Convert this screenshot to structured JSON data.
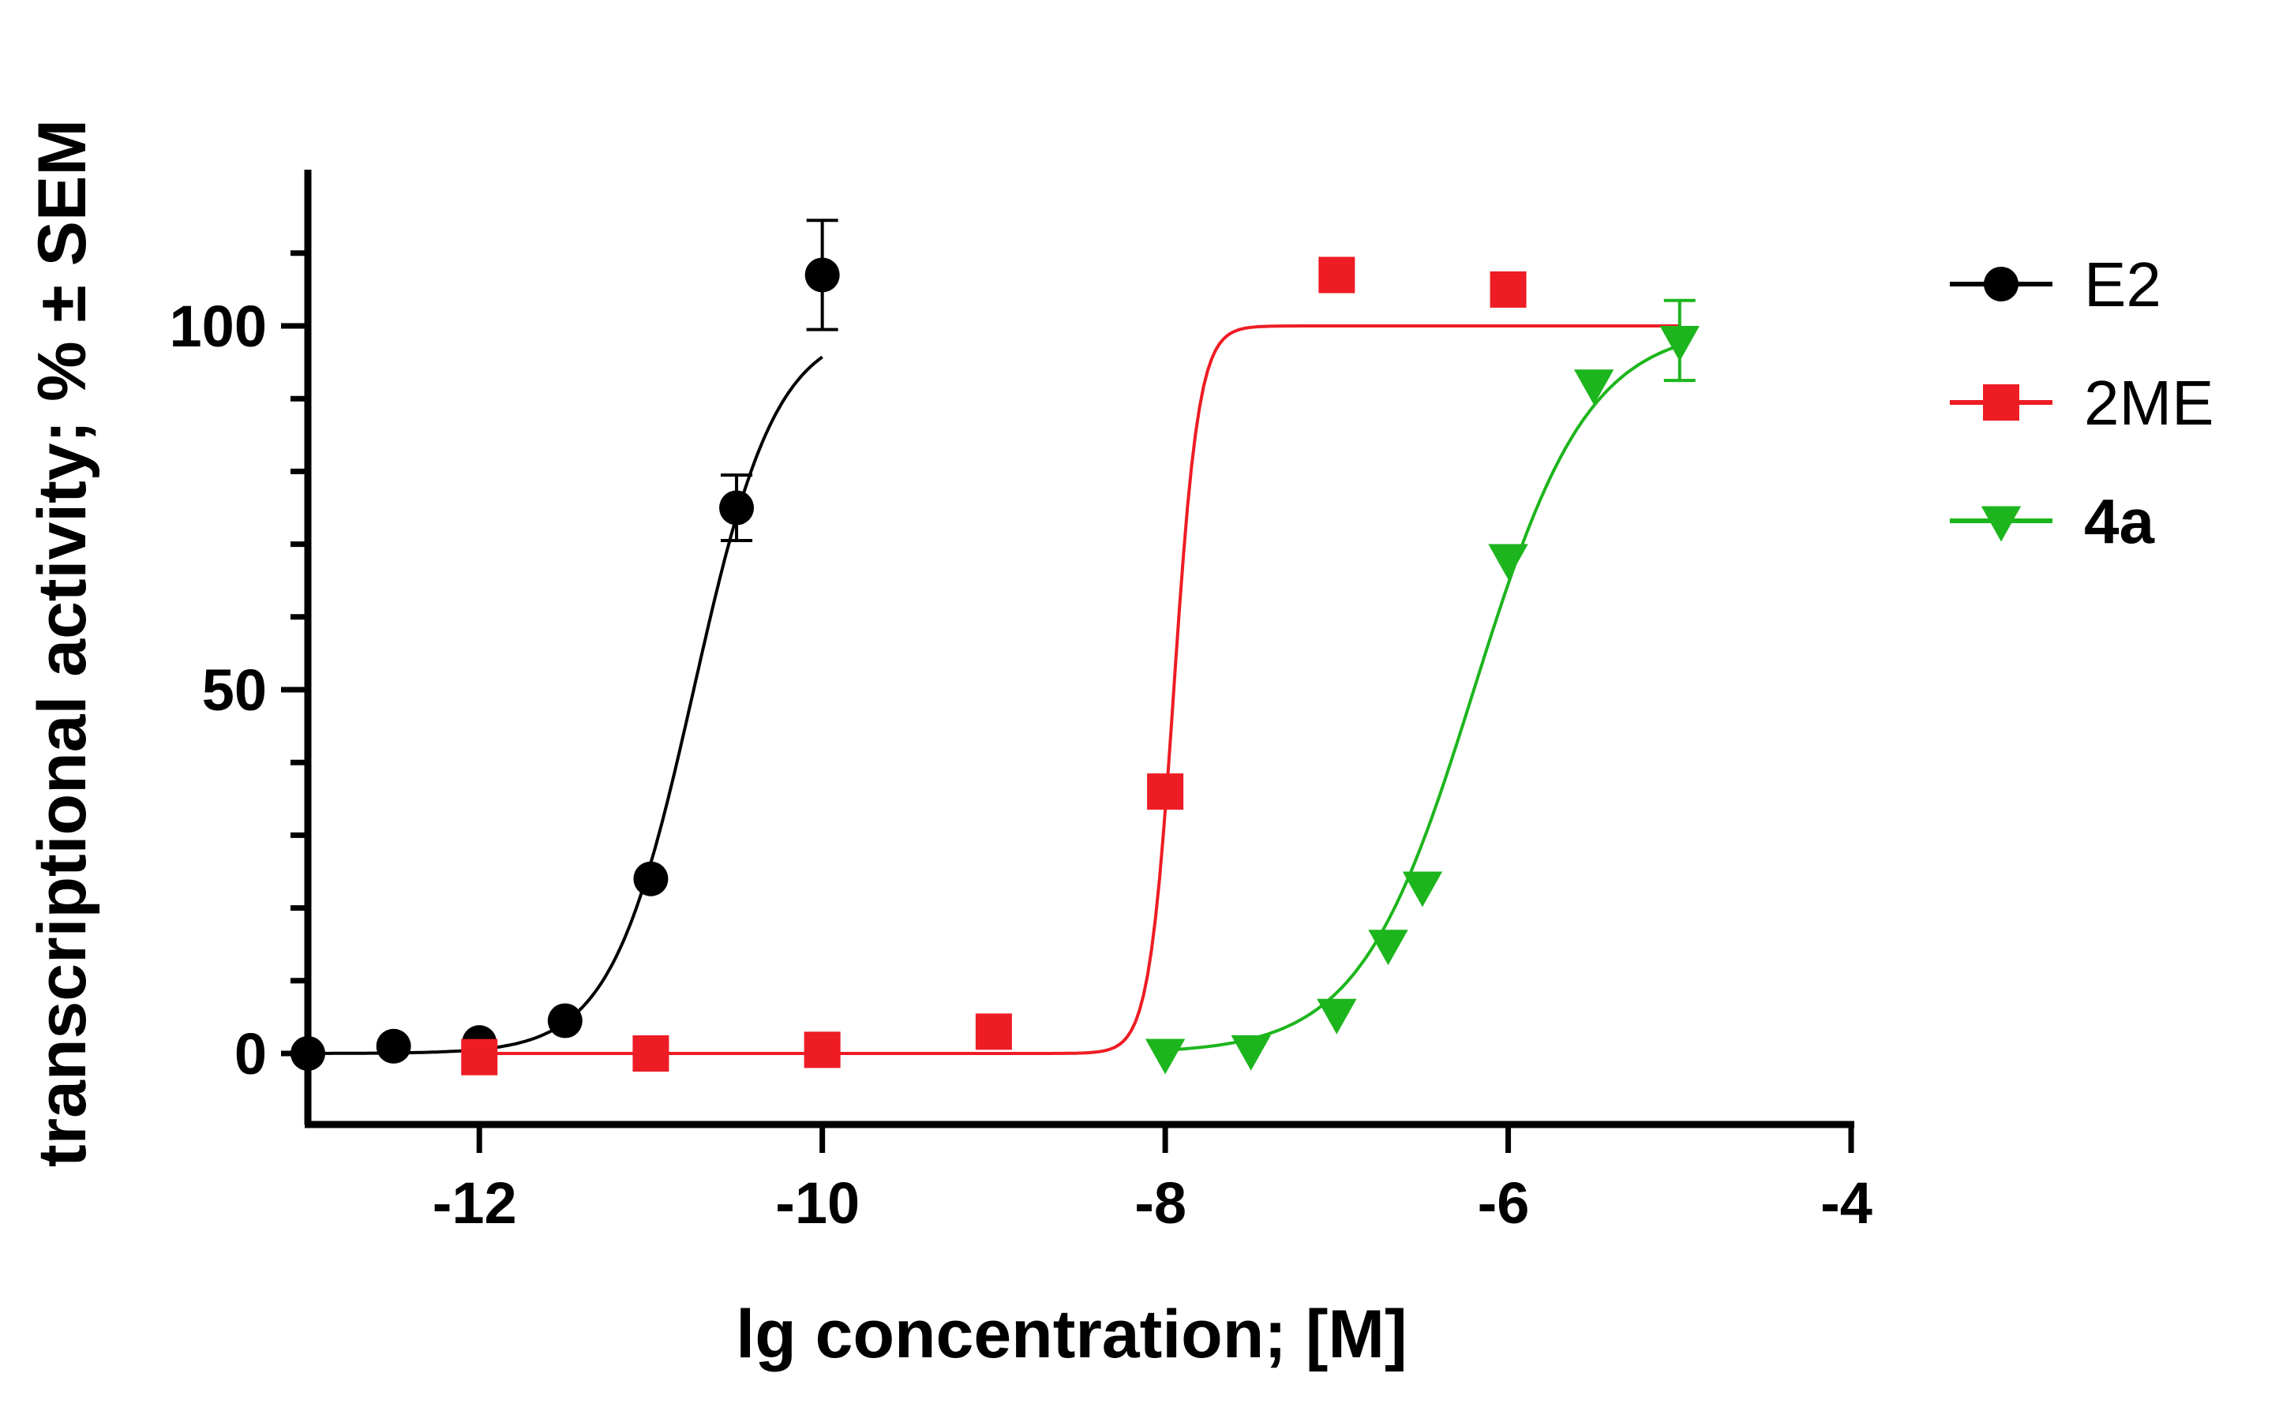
{
  "chart_data": {
    "type": "scatter",
    "xlabel": "lg concentration; [M]",
    "ylabel": "transcriptional activity; % ± SEM",
    "xlim": [
      -13,
      -4
    ],
    "ylim": [
      -10,
      120
    ],
    "xticks": [
      -12,
      -10,
      -8,
      -6,
      -4
    ],
    "xtick_labels": [
      "-12",
      "-10",
      "-8",
      "-6",
      "-4"
    ],
    "yticks": [
      0,
      50,
      100
    ],
    "ytick_labels": [
      "0",
      "50",
      "100"
    ],
    "y_minor_step": 10,
    "legend_position": "top-right outside",
    "series": [
      {
        "name": "E2",
        "color": "#000000",
        "marker": "circle",
        "bold_label": false,
        "x": [
          -13,
          -12.5,
          -12,
          -11.5,
          -11,
          -10.5,
          -10
        ],
        "y": [
          0,
          1,
          1.5,
          4.5,
          24,
          75,
          107
        ],
        "err": [
          0,
          0,
          0,
          0,
          0,
          4.5,
          7.5
        ],
        "fit": {
          "bottom": 0,
          "top": 100,
          "logEC50": -10.75,
          "hill": 1.8,
          "x_range": [
            -13,
            -10
          ]
        }
      },
      {
        "name": "2ME",
        "color": "#ee1c24",
        "marker": "square",
        "bold_label": false,
        "x": [
          -12,
          -11,
          -10,
          -9,
          -8,
          -7,
          -6
        ],
        "y": [
          -0.5,
          0,
          0.5,
          3,
          36,
          107,
          105
        ],
        "err": [
          0,
          0,
          0,
          0,
          0,
          0,
          0
        ],
        "fit": {
          "bottom": 0,
          "top": 100,
          "logEC50": -7.95,
          "hill": 6,
          "x_range": [
            -12,
            -5
          ]
        }
      },
      {
        "name": "4a",
        "color": "#1db51d",
        "marker": "triangle-down",
        "bold_label": true,
        "x": [
          -8,
          -7.5,
          -7,
          -6.7,
          -6.5,
          -6,
          -5.5,
          -5
        ],
        "y": [
          0,
          0.5,
          5.5,
          15,
          23,
          68,
          92,
          98
        ],
        "err": [
          0,
          0,
          0,
          0,
          0,
          0,
          0,
          5.5
        ],
        "fit": {
          "bottom": 0,
          "top": 100,
          "logEC50": -6.2,
          "hill": 1.3,
          "x_range": [
            -8,
            -5
          ]
        }
      }
    ]
  }
}
